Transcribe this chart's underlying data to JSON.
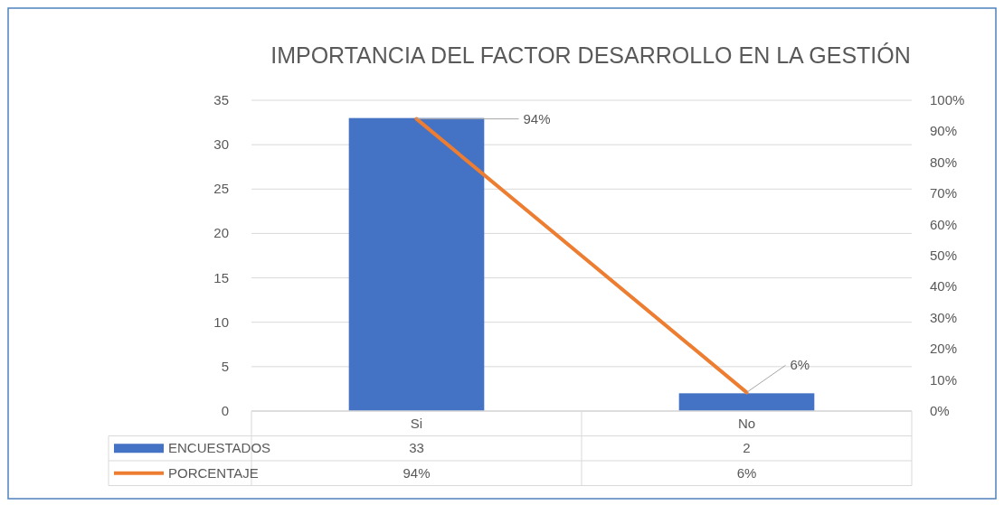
{
  "chart_data": {
    "type": "bar",
    "title": "IMPORTANCIA DEL FACTOR DESARROLLO EN LA GESTIÓN",
    "categories": [
      "Si",
      "No"
    ],
    "series": [
      {
        "name": "ENCUESTADOS",
        "color": "#4472c4",
        "values": [
          33,
          2
        ],
        "value_labels": [
          "33",
          "2"
        ]
      },
      {
        "name": "PORCENTAJE",
        "type": "line",
        "axis": "y2",
        "color": "#ed7d31",
        "values": [
          94,
          6
        ],
        "value_labels": [
          "94%",
          "6%"
        ]
      }
    ],
    "ylim": [
      0,
      35
    ],
    "yticks": [
      0,
      5,
      10,
      15,
      20,
      25,
      30,
      35
    ],
    "y2lim": [
      0,
      100
    ],
    "y2ticks": [
      {
        "value": 0,
        "label": "0%"
      },
      {
        "value": 10,
        "label": "10%"
      },
      {
        "value": 20,
        "label": "20%"
      },
      {
        "value": 30,
        "label": "30%"
      },
      {
        "value": 40,
        "label": "40%"
      },
      {
        "value": 50,
        "label": "50%"
      },
      {
        "value": 60,
        "label": "60%"
      },
      {
        "value": 70,
        "label": "70%"
      },
      {
        "value": 80,
        "label": "80%"
      },
      {
        "value": 90,
        "label": "90%"
      },
      {
        "value": 100,
        "label": "100%"
      }
    ],
    "grid": "y",
    "legend": "bottom",
    "line_style": "solid"
  }
}
